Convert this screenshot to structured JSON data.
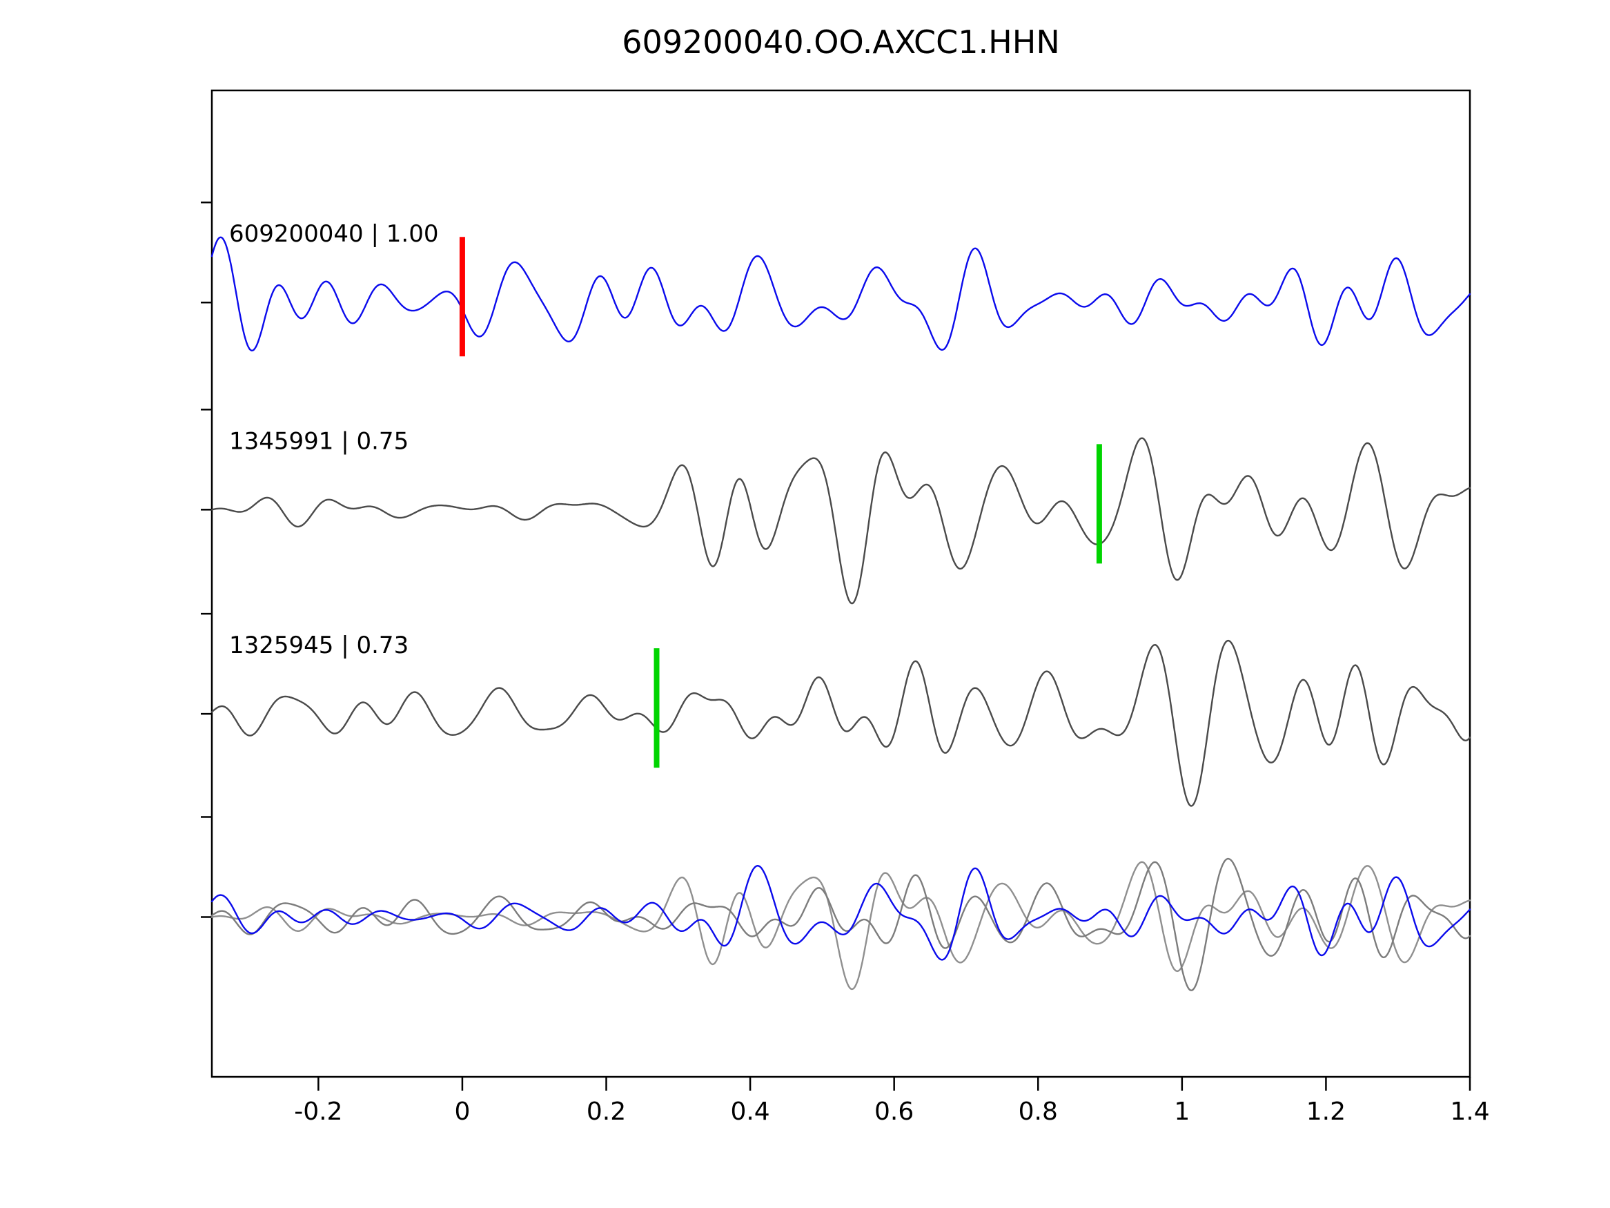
{
  "title": "609200040.OO.AXCC1.HHN",
  "chart_data": {
    "type": "line",
    "title": "609200040.OO.AXCC1.HHN",
    "xlabel": "",
    "ylabel": "",
    "xlim": [
      -0.348,
      1.4
    ],
    "grid": false,
    "legend_position": "none",
    "x_ticks": [
      -0.2,
      0,
      0.2,
      0.4,
      0.6,
      0.8,
      1,
      1.2,
      1.4
    ],
    "x_tick_labels": [
      "-0.2",
      "0",
      "0.2",
      "0.4",
      "0.6",
      "0.8",
      "1",
      "1.2",
      "1.4"
    ],
    "description": "Template-matching waveform comparison: template trace (blue) with correlation 1.00, two detected event traces (gray) with correlation coefficients, pick markers (red = template pick at t=0, green = detection picks), and an aligned overlay of all traces at the bottom.",
    "series": [
      {
        "name": "template-609200040",
        "label": "609200040 | 1.00",
        "event_id": "609200040",
        "correlation": 1.0,
        "color": "#0b0bec",
        "row_frac": 0.215,
        "amplitude": 1.0,
        "gen": {
          "seed": 101,
          "freq": [
            5,
            16
          ],
          "components": 26,
          "onset": 0.55,
          "base": 0.8
        },
        "marker": {
          "x": 0.0,
          "color": "#ff0000"
        }
      },
      {
        "name": "detection-1345991",
        "label": "1345991 | 0.75",
        "event_id": "1345991",
        "correlation": 0.75,
        "color": "#4a4a4a",
        "row_frac": 0.425,
        "amplitude": 1.17,
        "gen": {
          "seed": 202,
          "freq": [
            5,
            16
          ],
          "components": 26,
          "onset": 0.33,
          "base": 0.28
        },
        "marker": {
          "x": 0.885,
          "color": "#00d400"
        }
      },
      {
        "name": "detection-1325945",
        "label": "1325945 | 0.73",
        "event_id": "1325945",
        "correlation": 0.73,
        "color": "#4a4a4a",
        "row_frac": 0.632,
        "amplitude": 1.13,
        "gen": {
          "seed": 303,
          "freq": [
            5,
            16
          ],
          "components": 26,
          "onset": 0.3,
          "base": 0.3
        },
        "marker": {
          "x": 0.27,
          "color": "#00d400"
        }
      },
      {
        "name": "aligned-overlay",
        "label": "",
        "row_frac": 0.838,
        "amplitude": 0.9,
        "overlay_traces": [
          {
            "color": "#8f8f8f",
            "gen": {
              "seed": 202,
              "freq": [
                5,
                16
              ],
              "components": 26,
              "onset": 0.32,
              "base": 0.3
            }
          },
          {
            "color": "#7c7c7c",
            "gen": {
              "seed": 303,
              "freq": [
                5,
                16
              ],
              "components": 26,
              "onset": 0.32,
              "base": 0.3
            }
          },
          {
            "color": "#0b0bec",
            "gen": {
              "seed": 101,
              "freq": [
                5,
                16
              ],
              "components": 26,
              "onset": 0.32,
              "base": 0.3
            }
          }
        ]
      }
    ]
  }
}
